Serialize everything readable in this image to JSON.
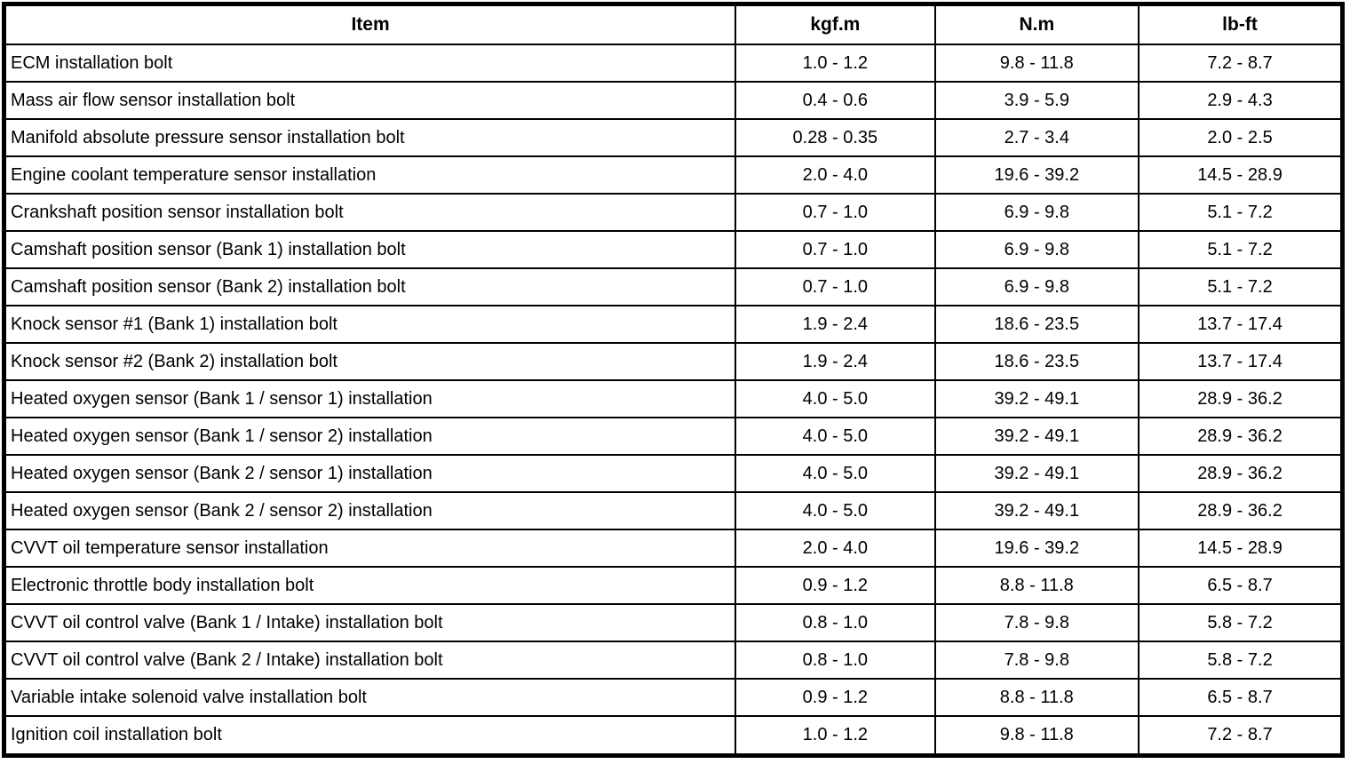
{
  "table": {
    "columns": [
      "Item",
      "kgf.m",
      "N.m",
      "lb-ft"
    ],
    "rows": [
      [
        "ECM installation bolt",
        "1.0 - 1.2",
        "9.8 - 11.8",
        "7.2 - 8.7"
      ],
      [
        "Mass air flow sensor installation bolt",
        "0.4 - 0.6",
        "3.9 - 5.9",
        "2.9 - 4.3"
      ],
      [
        "Manifold absolute pressure sensor installation bolt",
        "0.28 - 0.35",
        "2.7 - 3.4",
        "2.0 - 2.5"
      ],
      [
        "Engine coolant temperature sensor installation",
        "2.0 - 4.0",
        "19.6 - 39.2",
        "14.5 - 28.9"
      ],
      [
        "Crankshaft position sensor installation bolt",
        "0.7 - 1.0",
        "6.9 - 9.8",
        "5.1 - 7.2"
      ],
      [
        "Camshaft position sensor (Bank 1) installation bolt",
        "0.7 - 1.0",
        "6.9 - 9.8",
        "5.1 - 7.2"
      ],
      [
        "Camshaft position sensor (Bank 2) installation bolt",
        "0.7 - 1.0",
        "6.9 - 9.8",
        "5.1 - 7.2"
      ],
      [
        "Knock sensor #1 (Bank 1) installation bolt",
        "1.9 - 2.4",
        "18.6 - 23.5",
        "13.7 - 17.4"
      ],
      [
        "Knock sensor #2 (Bank 2) installation bolt",
        "1.9 - 2.4",
        "18.6 - 23.5",
        "13.7 - 17.4"
      ],
      [
        "Heated oxygen sensor (Bank 1 / sensor 1) installation",
        "4.0 - 5.0",
        "39.2 - 49.1",
        "28.9 - 36.2"
      ],
      [
        "Heated oxygen sensor (Bank 1 / sensor 2) installation",
        "4.0 - 5.0",
        "39.2 - 49.1",
        "28.9 - 36.2"
      ],
      [
        "Heated oxygen sensor (Bank 2 / sensor 1) installation",
        "4.0 - 5.0",
        "39.2 - 49.1",
        "28.9 - 36.2"
      ],
      [
        "Heated oxygen sensor (Bank 2 / sensor 2) installation",
        "4.0 - 5.0",
        "39.2 - 49.1",
        "28.9 - 36.2"
      ],
      [
        "CVVT oil temperature sensor installation",
        "2.0 - 4.0",
        "19.6 - 39.2",
        "14.5 - 28.9"
      ],
      [
        "Electronic throttle body installation bolt",
        "0.9 - 1.2",
        "8.8 - 11.8",
        "6.5 - 8.7"
      ],
      [
        "CVVT oil control valve (Bank 1 / Intake) installation bolt",
        "0.8 - 1.0",
        "7.8 - 9.8",
        "5.8 - 7.2"
      ],
      [
        "CVVT oil control valve (Bank 2 / Intake) installation bolt",
        "0.8 - 1.0",
        "7.8 - 9.8",
        "5.8 - 7.2"
      ],
      [
        "Variable intake solenoid valve installation bolt",
        "0.9 - 1.2",
        "8.8 - 11.8",
        "6.5 - 8.7"
      ],
      [
        "Ignition coil installation bolt",
        "1.0 - 1.2",
        "9.8 - 11.8",
        "7.2 - 8.7"
      ]
    ],
    "colors": {
      "border": "#000000",
      "text": "#000000",
      "background": "#ffffff"
    }
  }
}
